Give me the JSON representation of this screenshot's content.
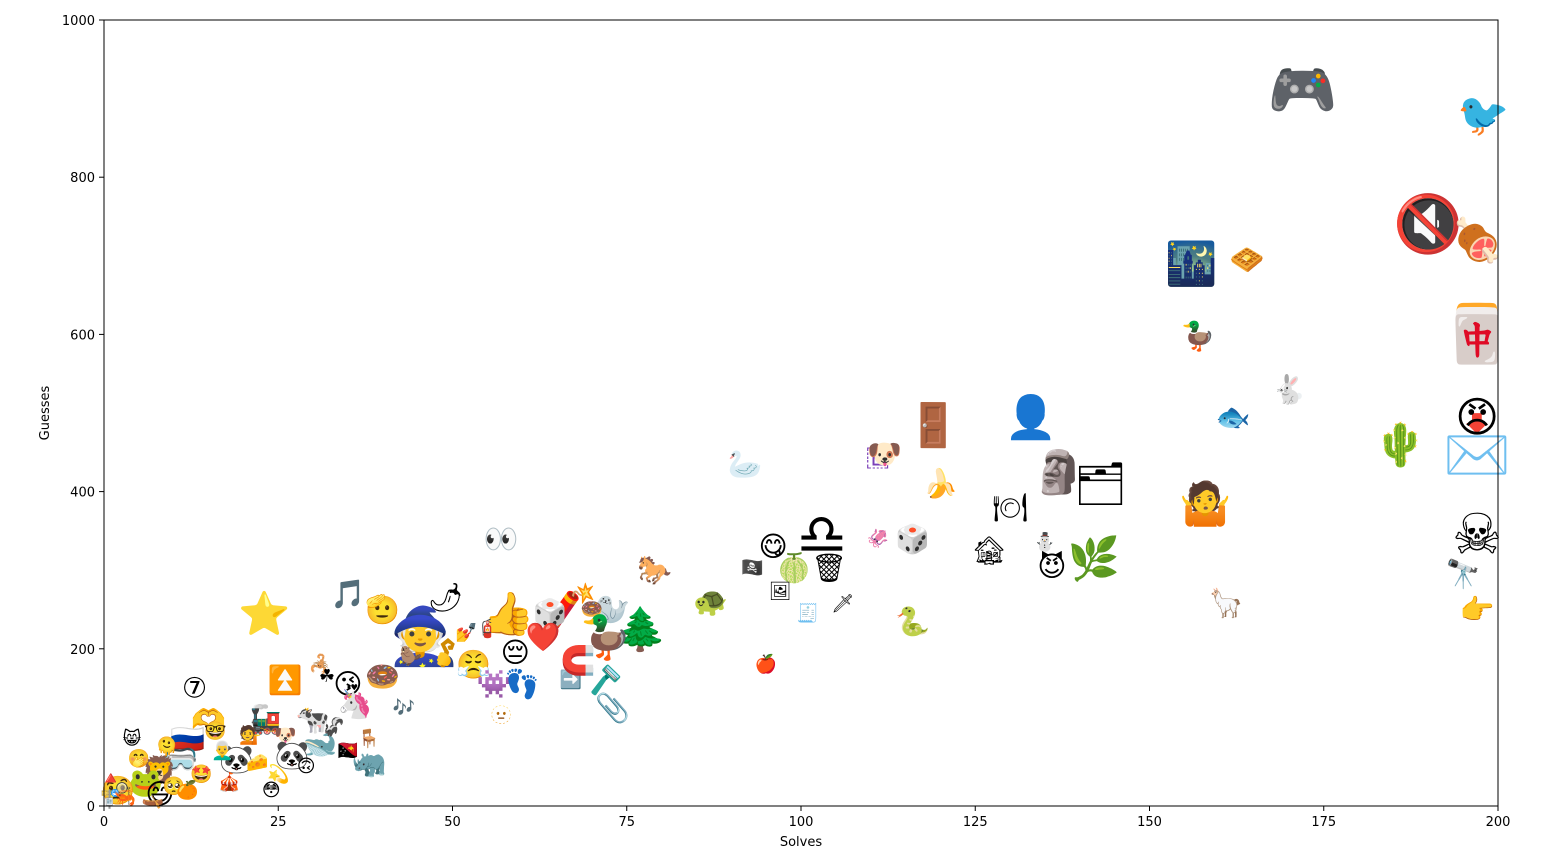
{
  "chart_data": {
    "type": "scatter",
    "title": "",
    "xlabel": "Solves",
    "ylabel": "Guesses",
    "xlim": [
      0,
      200
    ],
    "ylim": [
      0,
      1000
    ],
    "xticks": [
      "0",
      "25",
      "50",
      "75",
      "100",
      "125",
      "150",
      "175",
      "200"
    ],
    "yticks": [
      "0",
      "200",
      "400",
      "600",
      "800",
      "1000"
    ],
    "grid": false,
    "marker": "emoji",
    "points": [
      {
        "x": 172,
        "y": 910,
        "emoji": "🎮",
        "size": "xl"
      },
      {
        "x": 198,
        "y": 880,
        "emoji": "🐦",
        "size": "lg",
        "color": "#d32f2f"
      },
      {
        "x": 190,
        "y": 740,
        "emoji": "🔇",
        "size": "xl"
      },
      {
        "x": 197,
        "y": 720,
        "emoji": "🍖",
        "size": "lg"
      },
      {
        "x": 156,
        "y": 690,
        "emoji": "🌃",
        "size": "lg"
      },
      {
        "x": 164,
        "y": 695,
        "emoji": "🧇",
        "size": "md"
      },
      {
        "x": 197,
        "y": 600,
        "emoji": "🀄",
        "size": "xl"
      },
      {
        "x": 157,
        "y": 598,
        "emoji": "🦆",
        "size": "md"
      },
      {
        "x": 170,
        "y": 530,
        "emoji": "🐇",
        "size": "md"
      },
      {
        "x": 162,
        "y": 495,
        "emoji": "🐟",
        "size": "md"
      },
      {
        "x": 186,
        "y": 460,
        "emoji": "🌵",
        "size": "lg"
      },
      {
        "x": 197,
        "y": 460,
        "emoji": "📩",
        "size": "xl"
      },
      {
        "x": 197,
        "y": 495,
        "emoji": "😠",
        "size": "lg"
      },
      {
        "x": 158,
        "y": 385,
        "emoji": "🤷",
        "size": "lg"
      },
      {
        "x": 197,
        "y": 345,
        "emoji": "☠",
        "size": "xl"
      },
      {
        "x": 195,
        "y": 295,
        "emoji": "🔭",
        "size": "md"
      },
      {
        "x": 197,
        "y": 250,
        "emoji": "👉",
        "size": "md"
      },
      {
        "x": 161,
        "y": 258,
        "emoji": "🦙",
        "size": "md"
      },
      {
        "x": 133,
        "y": 495,
        "emoji": "👤",
        "size": "lg"
      },
      {
        "x": 119,
        "y": 485,
        "emoji": "🚪",
        "size": "lg"
      },
      {
        "x": 111,
        "y": 445,
        "emoji": "🇪",
        "size": "md",
        "color": "#7b3fb8"
      },
      {
        "x": 112,
        "y": 448,
        "emoji": "🐶",
        "size": "md"
      },
      {
        "x": 92,
        "y": 435,
        "emoji": "🦢",
        "size": "md"
      },
      {
        "x": 137,
        "y": 425,
        "emoji": "🗿",
        "size": "lg"
      },
      {
        "x": 143,
        "y": 410,
        "emoji": "🗂",
        "size": "lg"
      },
      {
        "x": 120,
        "y": 410,
        "emoji": "🍌",
        "size": "md"
      },
      {
        "x": 130,
        "y": 380,
        "emoji": "🍽",
        "size": "md"
      },
      {
        "x": 103,
        "y": 345,
        "emoji": "♎",
        "size": "xl"
      },
      {
        "x": 116,
        "y": 340,
        "emoji": "🎲",
        "size": "md"
      },
      {
        "x": 111,
        "y": 340,
        "emoji": "🦑",
        "size": "sm"
      },
      {
        "x": 96,
        "y": 330,
        "emoji": "😋",
        "size": "md"
      },
      {
        "x": 104,
        "y": 303,
        "emoji": "🗑",
        "size": "md"
      },
      {
        "x": 99,
        "y": 303,
        "emoji": "🍈",
        "size": "md"
      },
      {
        "x": 93,
        "y": 303,
        "emoji": "🏴‍☠️",
        "size": "sm"
      },
      {
        "x": 97,
        "y": 273,
        "emoji": "🖼",
        "size": "sm"
      },
      {
        "x": 127,
        "y": 325,
        "emoji": "🏚",
        "size": "md"
      },
      {
        "x": 135,
        "y": 335,
        "emoji": "⛄",
        "size": "sm"
      },
      {
        "x": 136,
        "y": 305,
        "emoji": "😈",
        "size": "md"
      },
      {
        "x": 142,
        "y": 315,
        "emoji": "🌿",
        "size": "lg"
      },
      {
        "x": 116,
        "y": 235,
        "emoji": "🐍",
        "size": "md"
      },
      {
        "x": 101,
        "y": 245,
        "emoji": "🧾",
        "size": "sm"
      },
      {
        "x": 106,
        "y": 257,
        "emoji": "🗡",
        "size": "sm"
      },
      {
        "x": 95,
        "y": 180,
        "emoji": "🍎",
        "size": "sm"
      },
      {
        "x": 57,
        "y": 340,
        "emoji": "👀",
        "size": "md"
      },
      {
        "x": 79,
        "y": 300,
        "emoji": "🐎",
        "size": "md"
      },
      {
        "x": 87,
        "y": 260,
        "emoji": "🐢",
        "size": "md"
      },
      {
        "x": 73,
        "y": 250,
        "emoji": "🦭",
        "size": "md"
      },
      {
        "x": 77,
        "y": 225,
        "emoji": "🌲",
        "size": "lg"
      },
      {
        "x": 67,
        "y": 255,
        "emoji": "🧨",
        "size": "lg"
      },
      {
        "x": 64,
        "y": 245,
        "emoji": "🎲",
        "size": "md",
        "color": "#c62828"
      },
      {
        "x": 70,
        "y": 250,
        "emoji": "🍩",
        "size": "sm"
      },
      {
        "x": 63,
        "y": 215,
        "emoji": "❤️",
        "size": "md"
      },
      {
        "x": 72,
        "y": 215,
        "emoji": "🦆",
        "size": "lg"
      },
      {
        "x": 58,
        "y": 245,
        "emoji": "👍",
        "size": "lg"
      },
      {
        "x": 55,
        "y": 225,
        "emoji": "🧯",
        "size": "sm"
      },
      {
        "x": 59,
        "y": 195,
        "emoji": "😔",
        "size": "md"
      },
      {
        "x": 49,
        "y": 265,
        "emoji": "🌶",
        "size": "md"
      },
      {
        "x": 35,
        "y": 270,
        "emoji": "🎵",
        "size": "md"
      },
      {
        "x": 40,
        "y": 250,
        "emoji": "🫡",
        "size": "md"
      },
      {
        "x": 23,
        "y": 245,
        "emoji": "⭐",
        "size": "lg"
      },
      {
        "x": 46,
        "y": 215,
        "emoji": "🧙",
        "size": "xl"
      },
      {
        "x": 52,
        "y": 220,
        "emoji": "💅",
        "size": "sm"
      },
      {
        "x": 53,
        "y": 180,
        "emoji": "😤",
        "size": "md"
      },
      {
        "x": 56,
        "y": 155,
        "emoji": "👾",
        "size": "md"
      },
      {
        "x": 60,
        "y": 155,
        "emoji": "👣",
        "size": "md"
      },
      {
        "x": 67,
        "y": 160,
        "emoji": "➡️",
        "size": "sm"
      },
      {
        "x": 72,
        "y": 160,
        "emoji": "🪒",
        "size": "md"
      },
      {
        "x": 68,
        "y": 185,
        "emoji": "🧲",
        "size": "md"
      },
      {
        "x": 73,
        "y": 125,
        "emoji": "📎",
        "size": "md"
      },
      {
        "x": 57,
        "y": 115,
        "emoji": "🫥",
        "size": "sm"
      },
      {
        "x": 44,
        "y": 190,
        "emoji": "🦫",
        "size": "sm"
      },
      {
        "x": 40,
        "y": 165,
        "emoji": "🍩",
        "size": "md"
      },
      {
        "x": 35,
        "y": 155,
        "emoji": "😘",
        "size": "md"
      },
      {
        "x": 31,
        "y": 180,
        "emoji": "🦂",
        "size": "sm"
      },
      {
        "x": 32,
        "y": 165,
        "emoji": "☘",
        "size": "sm"
      },
      {
        "x": 26,
        "y": 160,
        "emoji": "⏫",
        "size": "md"
      },
      {
        "x": 13,
        "y": 150,
        "emoji": "⑦",
        "size": "md"
      },
      {
        "x": 43,
        "y": 125,
        "emoji": "🎶",
        "size": "sm"
      },
      {
        "x": 36,
        "y": 130,
        "emoji": "🦄",
        "size": "md"
      },
      {
        "x": 30,
        "y": 110,
        "emoji": "🐄",
        "size": "md"
      },
      {
        "x": 23,
        "y": 110,
        "emoji": "🚂",
        "size": "md"
      },
      {
        "x": 15,
        "y": 110,
        "emoji": "🫶",
        "size": "md"
      },
      {
        "x": 12,
        "y": 85,
        "emoji": "🇷🇺",
        "size": "md"
      },
      {
        "x": 4,
        "y": 85,
        "emoji": "😸",
        "size": "sm"
      },
      {
        "x": 38,
        "y": 55,
        "emoji": "🦏",
        "size": "md"
      },
      {
        "x": 35,
        "y": 70,
        "emoji": "🇵🇬",
        "size": "sm"
      },
      {
        "x": 31,
        "y": 80,
        "emoji": "🐋",
        "size": "md"
      },
      {
        "x": 27,
        "y": 65,
        "emoji": "🐼",
        "size": "md"
      },
      {
        "x": 19,
        "y": 60,
        "emoji": "🐼",
        "size": "md"
      },
      {
        "x": 11,
        "y": 60,
        "emoji": "🥽",
        "size": "md"
      },
      {
        "x": 8,
        "y": 45,
        "emoji": "🦁",
        "size": "md"
      },
      {
        "x": 6,
        "y": 30,
        "emoji": "🐸",
        "size": "md"
      },
      {
        "x": 2,
        "y": 20,
        "emoji": "🧐",
        "size": "md"
      },
      {
        "x": 8,
        "y": 15,
        "emoji": "😅",
        "size": "md"
      },
      {
        "x": 0,
        "y": 5,
        "emoji": "🚏",
        "size": "sm"
      },
      {
        "x": 3,
        "y": 10,
        "emoji": "🦐",
        "size": "sm"
      },
      {
        "x": 10,
        "y": 25,
        "emoji": "🥺",
        "size": "sm"
      },
      {
        "x": 14,
        "y": 40,
        "emoji": "🤩",
        "size": "sm"
      },
      {
        "x": 17,
        "y": 70,
        "emoji": "👨‍🦳",
        "size": "sm"
      },
      {
        "x": 21,
        "y": 90,
        "emoji": "💁",
        "size": "sm"
      },
      {
        "x": 25,
        "y": 40,
        "emoji": "💫",
        "size": "sm"
      },
      {
        "x": 29,
        "y": 50,
        "emoji": "🙃",
        "size": "sm"
      },
      {
        "x": 33,
        "y": 100,
        "emoji": "🦨",
        "size": "sm"
      },
      {
        "x": 5,
        "y": 60,
        "emoji": "🤭",
        "size": "sm"
      },
      {
        "x": 1,
        "y": 35,
        "emoji": "🔺",
        "size": "sm"
      },
      {
        "x": 12,
        "y": 20,
        "emoji": "🍊",
        "size": "sm"
      },
      {
        "x": 18,
        "y": 30,
        "emoji": "🎪",
        "size": "sm"
      },
      {
        "x": 22,
        "y": 55,
        "emoji": "🧀",
        "size": "sm"
      },
      {
        "x": 16,
        "y": 95,
        "emoji": "🤓",
        "size": "sm"
      },
      {
        "x": 9,
        "y": 75,
        "emoji": "🫠",
        "size": "sm"
      },
      {
        "x": 26,
        "y": 90,
        "emoji": "🐶",
        "size": "sm"
      },
      {
        "x": 38,
        "y": 85,
        "emoji": "🪑",
        "size": "sm"
      },
      {
        "x": 24,
        "y": 20,
        "emoji": "😳",
        "size": "sm"
      },
      {
        "x": 7,
        "y": 5,
        "emoji": "🛶",
        "size": "sm"
      }
    ]
  }
}
